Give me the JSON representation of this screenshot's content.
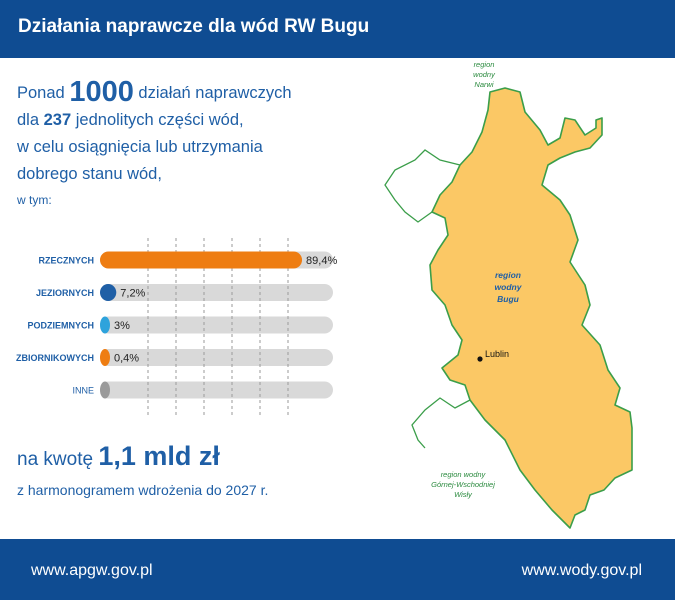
{
  "header": {
    "title": "Działania naprawcze dla wód RW Bugu"
  },
  "intro": {
    "prefix": "Ponad",
    "count": "1000",
    "after_count": "działań naprawczych",
    "line2_prefix": "dla",
    "parts": "237",
    "line2_suffix": "jednolitych części wód,",
    "line3": "w celu osiągnięcia lub utrzymania",
    "line4": "dobrego stanu wód,",
    "sub": "w tym:"
  },
  "chart_data": {
    "type": "bar",
    "orientation": "horizontal",
    "categories": [
      "RZECZNYCH",
      "JEZIORNYCH",
      "PODZIEMNYCH",
      "ZBIORNIKOWYCH",
      "INNE"
    ],
    "values": [
      89.4,
      7.2,
      3,
      0.4,
      0
    ],
    "value_labels": [
      "89,4%",
      "7,2%",
      "3%",
      "0,4%",
      ""
    ],
    "colors": [
      "#ee7d12",
      "#1f5fa6",
      "#2ea3dc",
      "#ee7d12",
      "#9a9a9a"
    ],
    "xlim": [
      0,
      100
    ],
    "grid": true
  },
  "amount": {
    "prefix": "na kwotę",
    "value": "1,1 mld zł",
    "line2": "z harmonogramem wdrożenia do 2027 r."
  },
  "map": {
    "north_label": [
      "region",
      "wodny",
      "Narwi"
    ],
    "center_label": [
      "region",
      "wodny",
      "Bugu"
    ],
    "city": "Lublin",
    "south_label": [
      "region wodny",
      "Górnej-Wschodniej",
      "Wisły"
    ],
    "fill_color": "#fbc865",
    "border_color": "#3b9e4a"
  },
  "footer": {
    "left": "www.apgw.gov.pl",
    "right": "www.wody.gov.pl"
  }
}
